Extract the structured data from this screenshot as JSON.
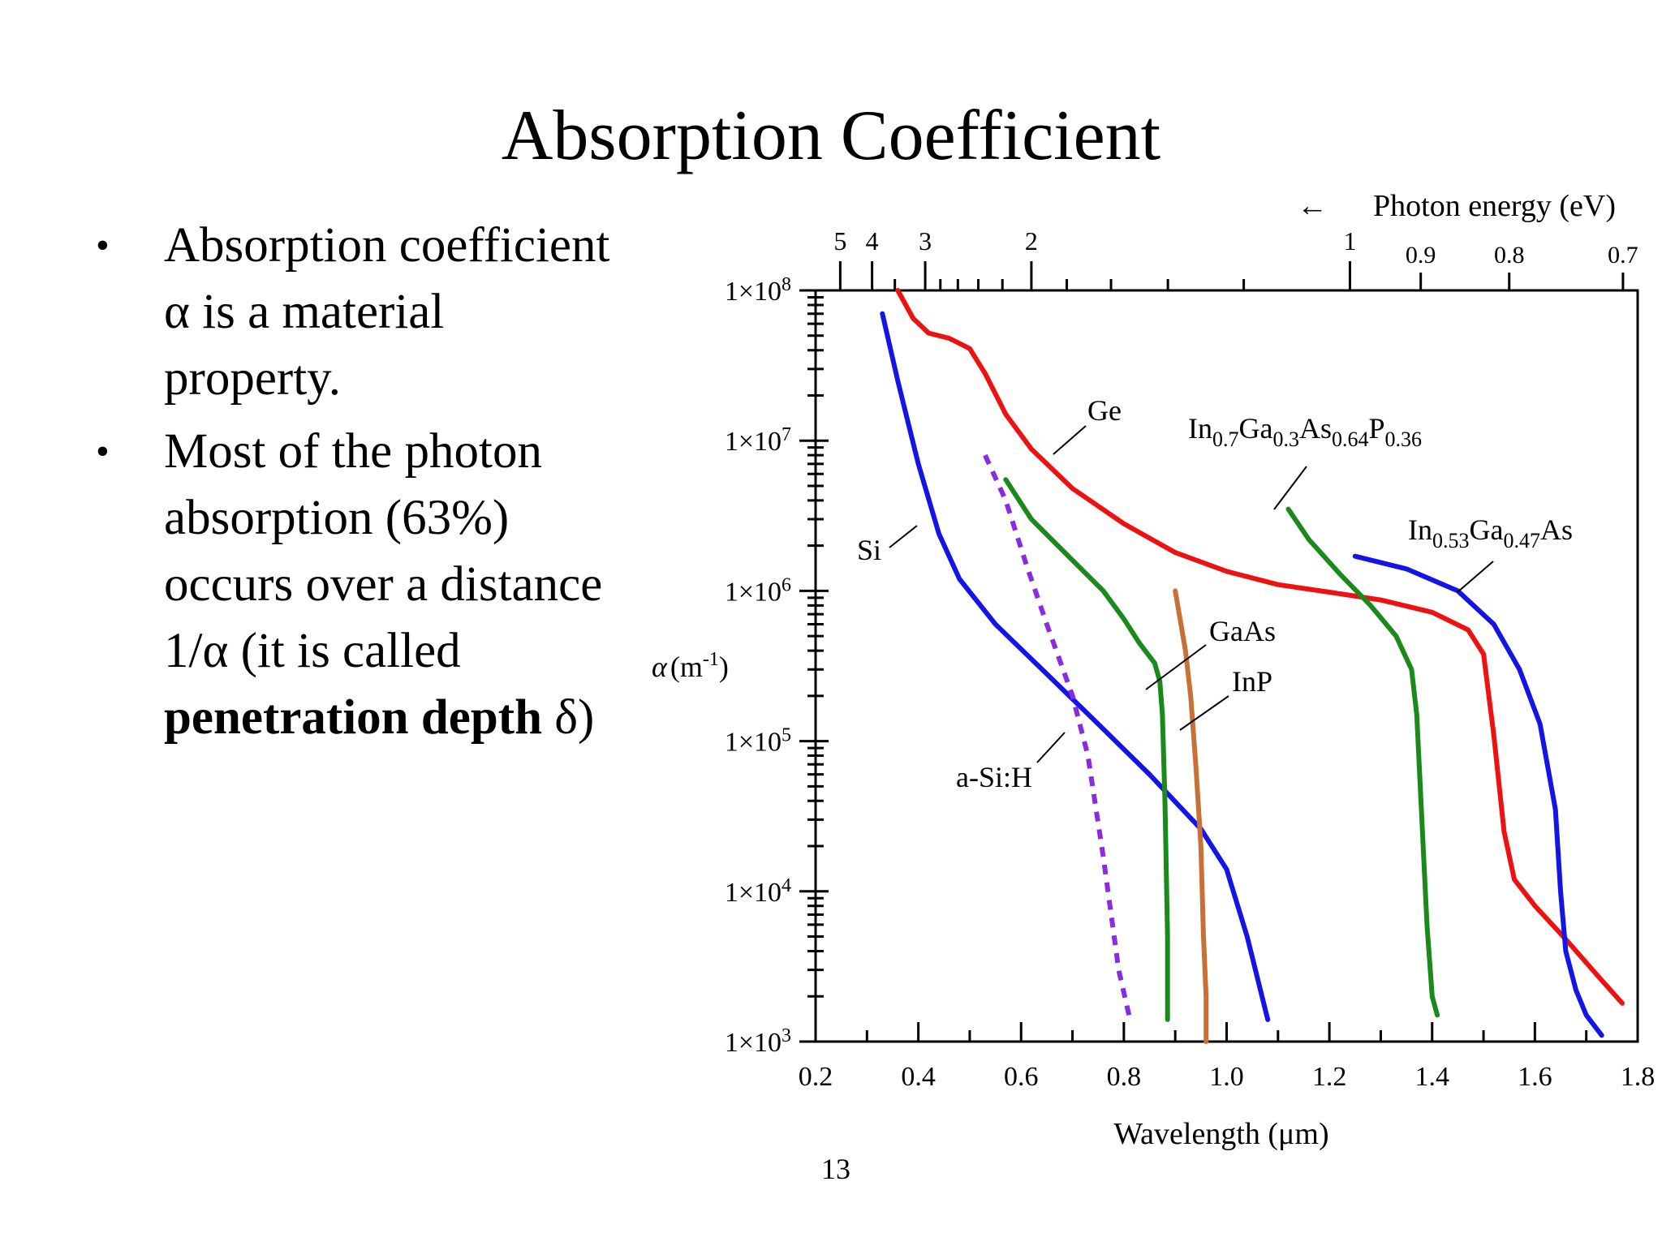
{
  "slide": {
    "title": "Absorption Coefficient",
    "bullets": [
      {
        "text": "Absorption coefficient α is a material property."
      },
      {
        "text_before": "Most of the photon absorption (63%) occurs over a distance 1/α (it is called ",
        "bold": "penetration depth",
        "text_after": " δ)"
      }
    ],
    "page_number": "13"
  },
  "chart_data": {
    "type": "line",
    "x_axis": {
      "label_main": "Wavelength (",
      "label_unit": "μm",
      "label_close": ")",
      "range": [
        0.2,
        1.8
      ],
      "ticks": [
        0.2,
        0.4,
        0.6,
        0.8,
        1.0,
        1.2,
        1.4,
        1.6,
        1.8
      ],
      "tick_labels": [
        "0.2",
        "0.4",
        "0.6",
        "0.8",
        "1.0",
        "1.2",
        "1.4",
        "1.6",
        "1.8"
      ]
    },
    "top_axis": {
      "label": "Photon energy (eV)",
      "arrow": "←",
      "ticks_eV": [
        5,
        4,
        3,
        2,
        1,
        0.9,
        0.8,
        0.7
      ],
      "tick_labels": [
        "5",
        "4",
        "3",
        "2",
        "1",
        "0.9",
        "0.8",
        "0.7"
      ]
    },
    "y_axis": {
      "label_symbol": "α",
      "label_unit": "(m",
      "label_exp": "-1",
      "label_close": ")",
      "scale": "log",
      "range": [
        1000,
        100000000
      ],
      "tick_labels": [
        {
          "value": 1000,
          "mant": "1×10",
          "exp": "3"
        },
        {
          "value": 10000,
          "mant": "1×10",
          "exp": "4"
        },
        {
          "value": 100000,
          "mant": "1×10",
          "exp": "5"
        },
        {
          "value": 1000000,
          "mant": "1×10",
          "exp": "6"
        },
        {
          "value": 10000000,
          "mant": "1×10",
          "exp": "7"
        },
        {
          "value": 100000000,
          "mant": "1×10",
          "exp": "8"
        }
      ]
    },
    "series": [
      {
        "name": "Ge",
        "color": "#ee1111",
        "dash": false,
        "points": [
          [
            0.36,
            100000000.0
          ],
          [
            0.39,
            65000000.0
          ],
          [
            0.42,
            52000000.0
          ],
          [
            0.46,
            48000000.0
          ],
          [
            0.5,
            41000000.0
          ],
          [
            0.53,
            28000000.0
          ],
          [
            0.57,
            15000000.0
          ],
          [
            0.62,
            8800000.0
          ],
          [
            0.7,
            4800000.0
          ],
          [
            0.8,
            2800000.0
          ],
          [
            0.9,
            1800000.0
          ],
          [
            1.0,
            1350000.0
          ],
          [
            1.1,
            1100000.0
          ],
          [
            1.2,
            980000.0
          ],
          [
            1.3,
            870000.0
          ],
          [
            1.4,
            720000.0
          ],
          [
            1.47,
            550000.0
          ],
          [
            1.5,
            380000.0
          ],
          [
            1.52,
            110000.0
          ],
          [
            1.54,
            25000.0
          ],
          [
            1.56,
            12000.0
          ],
          [
            1.6,
            8000.0
          ],
          [
            1.66,
            4800.0
          ],
          [
            1.72,
            2800.0
          ],
          [
            1.77,
            1800.0
          ]
        ]
      },
      {
        "name": "Si",
        "color": "#1414e6",
        "dash": false,
        "points": [
          [
            0.33,
            70000000.0
          ],
          [
            0.36,
            25000000.0
          ],
          [
            0.4,
            7000000.0
          ],
          [
            0.44,
            2400000.0
          ],
          [
            0.48,
            1200000.0
          ],
          [
            0.55,
            600000.0
          ],
          [
            0.65,
            280000.0
          ],
          [
            0.75,
            130000.0
          ],
          [
            0.85,
            60000.0
          ],
          [
            0.95,
            26000.0
          ],
          [
            1.0,
            14000.0
          ],
          [
            1.04,
            5000.0
          ],
          [
            1.08,
            1400.0
          ]
        ]
      },
      {
        "name": "a-Si:H",
        "color": "#8a2be2",
        "dash": true,
        "points": [
          [
            0.53,
            8000000.0
          ],
          [
            0.57,
            4000000.0
          ],
          [
            0.61,
            1500000.0
          ],
          [
            0.65,
            600000.0
          ],
          [
            0.7,
            200000.0
          ],
          [
            0.73,
            80000.0
          ],
          [
            0.76,
            17000.0
          ],
          [
            0.79,
            3000.0
          ],
          [
            0.81,
            1500.0
          ]
        ]
      },
      {
        "name": "GaAs",
        "color": "#1a8a1a",
        "dash": false,
        "points": [
          [
            0.57,
            5500000.0
          ],
          [
            0.62,
            3000000.0
          ],
          [
            0.7,
            1600000.0
          ],
          [
            0.76,
            1000000.0
          ],
          [
            0.8,
            650000.0
          ],
          [
            0.83,
            450000.0
          ],
          [
            0.86,
            330000.0
          ],
          [
            0.87,
            250000.0
          ],
          [
            0.875,
            150000.0
          ],
          [
            0.88,
            40000.0
          ],
          [
            0.885,
            5000.0
          ],
          [
            0.885,
            1400.0
          ]
        ]
      },
      {
        "name": "InP",
        "color": "#c87137",
        "dash": false,
        "points": [
          [
            0.9,
            1000000.0
          ],
          [
            0.92,
            400000.0
          ],
          [
            0.93,
            200000.0
          ],
          [
            0.94,
            70000.0
          ],
          [
            0.95,
            20000.0
          ],
          [
            0.955,
            5000.0
          ],
          [
            0.96,
            2000.0
          ],
          [
            0.96,
            1000.0
          ]
        ]
      },
      {
        "name": "In0.7Ga0.3As0.64P0.36",
        "color": "#1a8a1a",
        "dash": false,
        "points": [
          [
            1.12,
            3500000.0
          ],
          [
            1.16,
            2200000.0
          ],
          [
            1.22,
            1300000.0
          ],
          [
            1.28,
            800000.0
          ],
          [
            1.33,
            500000.0
          ],
          [
            1.36,
            300000.0
          ],
          [
            1.37,
            150000.0
          ],
          [
            1.38,
            30000.0
          ],
          [
            1.39,
            6000.0
          ],
          [
            1.4,
            2000.0
          ],
          [
            1.41,
            1500.0
          ]
        ]
      },
      {
        "name": "In0.53Ga0.47As",
        "color": "#1414e6",
        "dash": false,
        "points": [
          [
            1.25,
            1700000.0
          ],
          [
            1.35,
            1400000.0
          ],
          [
            1.45,
            1000000.0
          ],
          [
            1.52,
            600000.0
          ],
          [
            1.57,
            300000.0
          ],
          [
            1.61,
            130000.0
          ],
          [
            1.64,
            35000.0
          ],
          [
            1.65,
            10000.0
          ],
          [
            1.66,
            4000.0
          ],
          [
            1.68,
            2200.0
          ],
          [
            1.7,
            1500.0
          ],
          [
            1.73,
            1100.0
          ]
        ]
      }
    ],
    "labels": [
      {
        "series": "Ge",
        "parts": [
          {
            "t": "Ge"
          }
        ]
      },
      {
        "series": "Si",
        "parts": [
          {
            "t": "Si"
          }
        ]
      },
      {
        "series": "a-Si:H",
        "parts": [
          {
            "t": "a-Si:H"
          }
        ]
      },
      {
        "series": "GaAs",
        "parts": [
          {
            "t": "GaAs"
          }
        ]
      },
      {
        "series": "InP",
        "parts": [
          {
            "t": "InP"
          }
        ]
      },
      {
        "series": "In0.7Ga0.3As0.64P0.36",
        "parts": [
          {
            "t": "In"
          },
          {
            "t": "0.7",
            "sub": true
          },
          {
            "t": "Ga"
          },
          {
            "t": "0.3",
            "sub": true
          },
          {
            "t": "As"
          },
          {
            "t": "0.64",
            "sub": true
          },
          {
            "t": "P"
          },
          {
            "t": "0.36",
            "sub": true
          }
        ]
      },
      {
        "series": "In0.53Ga0.47As",
        "parts": [
          {
            "t": "In"
          },
          {
            "t": "0.53",
            "sub": true
          },
          {
            "t": "Ga"
          },
          {
            "t": "0.47",
            "sub": true
          },
          {
            "t": "As"
          }
        ]
      }
    ],
    "grid": false
  }
}
